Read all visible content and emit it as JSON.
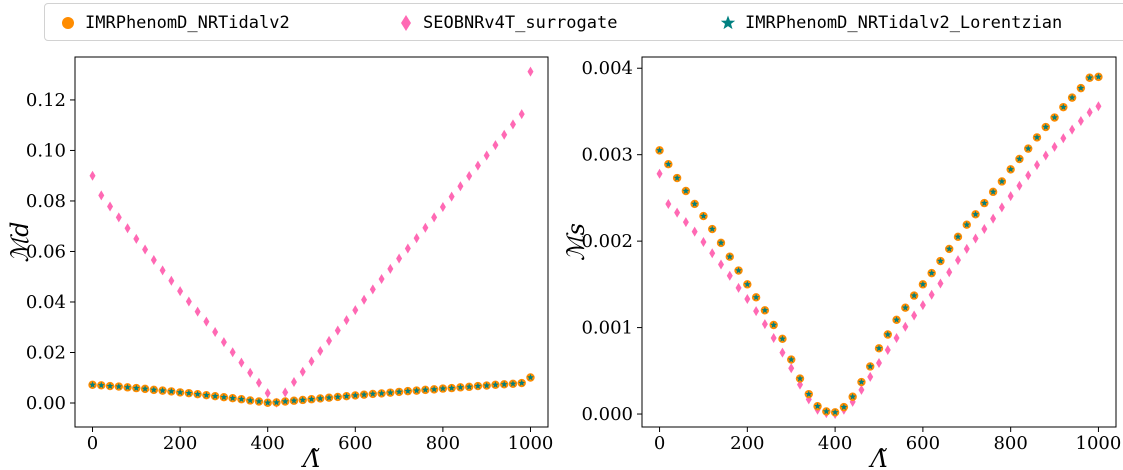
{
  "legend": {
    "items": [
      {
        "label": "IMRPhenomD_NRTidalv2",
        "color": "#ff8c00",
        "marker": "circle"
      },
      {
        "label": "SEOBNRv4T_surrogate",
        "color": "#ff69b4",
        "marker": "diamond"
      },
      {
        "label": "IMRPhenomD_NRTidalv2_Lorentzian",
        "color": "#008080",
        "marker": "star"
      }
    ]
  },
  "chart_data": [
    {
      "type": "scatter",
      "xlabel": "Λ̃",
      "ylabel": "ℳd",
      "xlim": [
        -40,
        1040
      ],
      "ylim": [
        -0.0095,
        0.137
      ],
      "xticks": [
        0,
        200,
        400,
        600,
        800,
        1000
      ],
      "xtick_labels": [
        "0",
        "200",
        "400",
        "600",
        "800",
        "1000"
      ],
      "yticks": [
        0.0,
        0.02,
        0.04,
        0.06,
        0.08,
        0.1,
        0.12
      ],
      "ytick_labels": [
        "0.00",
        "0.02",
        "0.04",
        "0.06",
        "0.08",
        "0.10",
        "0.12"
      ],
      "grid": false,
      "series": [
        {
          "name": "IMRPhenomD_NRTidalv2",
          "marker": "circle",
          "color": "#ff8c00",
          "x": [
            0,
            20,
            40,
            60,
            80,
            100,
            120,
            140,
            160,
            180,
            200,
            220,
            240,
            260,
            280,
            300,
            320,
            340,
            360,
            380,
            400,
            420,
            440,
            460,
            480,
            500,
            520,
            540,
            560,
            580,
            600,
            620,
            640,
            660,
            680,
            700,
            720,
            740,
            760,
            780,
            800,
            820,
            840,
            860,
            880,
            900,
            920,
            940,
            960,
            980,
            1000
          ],
          "y": [
            0.0072,
            0.007,
            0.0067,
            0.0065,
            0.0062,
            0.0059,
            0.0056,
            0.0052,
            0.0049,
            0.0046,
            0.0042,
            0.0039,
            0.0035,
            0.0031,
            0.0027,
            0.0023,
            0.0019,
            0.0015,
            0.001,
            0.0006,
            0.0001,
            0.0002,
            0.0006,
            0.0009,
            0.0012,
            0.0015,
            0.0018,
            0.0021,
            0.0024,
            0.0027,
            0.003,
            0.0033,
            0.0036,
            0.0038,
            0.0041,
            0.0044,
            0.0047,
            0.0049,
            0.0052,
            0.0054,
            0.0057,
            0.0059,
            0.0062,
            0.0064,
            0.0067,
            0.0069,
            0.0072,
            0.0074,
            0.0076,
            0.0079,
            0.0101
          ]
        },
        {
          "name": "SEOBNRv4T_surrogate",
          "marker": "diamond",
          "color": "#ff69b4",
          "x": [
            0,
            20,
            40,
            60,
            80,
            100,
            120,
            140,
            160,
            180,
            200,
            220,
            240,
            260,
            280,
            300,
            320,
            340,
            360,
            380,
            400,
            420,
            440,
            460,
            480,
            500,
            520,
            540,
            560,
            580,
            600,
            620,
            640,
            660,
            680,
            700,
            720,
            740,
            760,
            780,
            800,
            820,
            840,
            860,
            880,
            900,
            920,
            940,
            960,
            980,
            1000
          ],
          "y": [
            0.09,
            0.0822,
            0.0778,
            0.0735,
            0.0692,
            0.065,
            0.0608,
            0.0566,
            0.0525,
            0.0484,
            0.0443,
            0.0402,
            0.0362,
            0.0322,
            0.0281,
            0.0241,
            0.0201,
            0.016,
            0.012,
            0.008,
            0.0039,
            0.0001,
            0.0042,
            0.0083,
            0.0124,
            0.0165,
            0.0206,
            0.0246,
            0.0287,
            0.0328,
            0.0368,
            0.0409,
            0.045,
            0.0491,
            0.0531,
            0.0572,
            0.0612,
            0.0653,
            0.0694,
            0.0735,
            0.0776,
            0.0817,
            0.0858,
            0.0899,
            0.094,
            0.098,
            0.1021,
            0.1062,
            0.1103,
            0.1144,
            0.1312
          ]
        },
        {
          "name": "IMRPhenomD_NRTidalv2_Lorentzian",
          "marker": "star",
          "color": "#008080",
          "x": [
            0,
            20,
            40,
            60,
            80,
            100,
            120,
            140,
            160,
            180,
            200,
            220,
            240,
            260,
            280,
            300,
            320,
            340,
            360,
            380,
            400,
            420,
            440,
            460,
            480,
            500,
            520,
            540,
            560,
            580,
            600,
            620,
            640,
            660,
            680,
            700,
            720,
            740,
            760,
            780,
            800,
            820,
            840,
            860,
            880,
            900,
            920,
            940,
            960,
            980,
            1000
          ],
          "y": [
            0.0072,
            0.007,
            0.0067,
            0.0065,
            0.0062,
            0.0059,
            0.0056,
            0.0052,
            0.0049,
            0.0046,
            0.0042,
            0.0039,
            0.0035,
            0.0031,
            0.0027,
            0.0023,
            0.0019,
            0.0015,
            0.001,
            0.0006,
            0.0001,
            0.0002,
            0.0006,
            0.0009,
            0.0012,
            0.0015,
            0.0018,
            0.0021,
            0.0024,
            0.0027,
            0.003,
            0.0033,
            0.0036,
            0.0038,
            0.0041,
            0.0044,
            0.0047,
            0.0049,
            0.0052,
            0.0054,
            0.0057,
            0.0059,
            0.0062,
            0.0064,
            0.0067,
            0.0069,
            0.0072,
            0.0074,
            0.0076,
            0.0079,
            0.0101
          ]
        }
      ]
    },
    {
      "type": "scatter",
      "xlabel": "Λ̃",
      "ylabel": "ℳs",
      "xlim": [
        -40,
        1040
      ],
      "ylim": [
        -0.00015,
        0.00413
      ],
      "xticks": [
        0,
        200,
        400,
        600,
        800,
        1000
      ],
      "xtick_labels": [
        "0",
        "200",
        "400",
        "600",
        "800",
        "1000"
      ],
      "yticks": [
        0.0,
        0.001,
        0.002,
        0.003,
        0.004
      ],
      "ytick_labels": [
        "0.000",
        "0.001",
        "0.002",
        "0.003",
        "0.004"
      ],
      "grid": false,
      "series": [
        {
          "name": "IMRPhenomD_NRTidalv2",
          "marker": "circle",
          "color": "#ff8c00",
          "x": [
            0,
            20,
            40,
            60,
            80,
            100,
            120,
            140,
            160,
            180,
            200,
            220,
            240,
            260,
            280,
            300,
            320,
            340,
            360,
            380,
            400,
            420,
            440,
            460,
            480,
            500,
            520,
            540,
            560,
            580,
            600,
            620,
            640,
            660,
            680,
            700,
            720,
            740,
            760,
            780,
            800,
            820,
            840,
            860,
            880,
            900,
            920,
            940,
            960,
            980,
            1000
          ],
          "y": [
            0.00305,
            0.00289,
            0.00273,
            0.00258,
            0.00243,
            0.00229,
            0.00214,
            0.00198,
            0.00182,
            0.00166,
            0.0015,
            0.00135,
            0.0012,
            0.00103,
            0.00087,
            0.00063,
            0.00041,
            0.00023,
            9e-05,
            3e-05,
            2e-05,
            8e-05,
            0.0002,
            0.00037,
            0.00055,
            0.00076,
            0.00092,
            0.00109,
            0.00123,
            0.00137,
            0.0015,
            0.00163,
            0.00177,
            0.00191,
            0.00205,
            0.00219,
            0.00231,
            0.00244,
            0.00257,
            0.00269,
            0.00283,
            0.00295,
            0.00307,
            0.0032,
            0.00332,
            0.00343,
            0.00355,
            0.00366,
            0.00377,
            0.00389,
            0.0039
          ]
        },
        {
          "name": "SEOBNRv4T_surrogate",
          "marker": "diamond",
          "color": "#ff69b4",
          "x": [
            0,
            20,
            40,
            60,
            80,
            100,
            120,
            140,
            160,
            180,
            200,
            220,
            240,
            260,
            280,
            300,
            320,
            340,
            360,
            380,
            400,
            420,
            440,
            460,
            480,
            500,
            520,
            540,
            560,
            580,
            600,
            620,
            640,
            660,
            680,
            700,
            720,
            740,
            760,
            780,
            800,
            820,
            840,
            860,
            880,
            900,
            920,
            940,
            960,
            980,
            1000
          ],
          "y": [
            0.00278,
            0.00243,
            0.00233,
            0.00222,
            0.00211,
            0.00199,
            0.00186,
            0.00173,
            0.0016,
            0.00146,
            0.00133,
            0.00119,
            0.00104,
            0.00088,
            0.00071,
            0.00053,
            0.00034,
            0.00017,
            5e-05,
            1e-05,
            0.0,
            5e-05,
            0.00014,
            0.00028,
            0.00043,
            0.00059,
            0.00074,
            0.00088,
            0.00101,
            0.00114,
            0.00126,
            0.00138,
            0.00151,
            0.00164,
            0.00178,
            0.00191,
            0.00203,
            0.00214,
            0.00226,
            0.00239,
            0.00252,
            0.00264,
            0.00276,
            0.00288,
            0.00299,
            0.00309,
            0.00319,
            0.00329,
            0.00339,
            0.00349,
            0.00356
          ]
        },
        {
          "name": "IMRPhenomD_NRTidalv2_Lorentzian",
          "marker": "star",
          "color": "#008080",
          "x": [
            0,
            20,
            40,
            60,
            80,
            100,
            120,
            140,
            160,
            180,
            200,
            220,
            240,
            260,
            280,
            300,
            320,
            340,
            360,
            380,
            400,
            420,
            440,
            460,
            480,
            500,
            520,
            540,
            560,
            580,
            600,
            620,
            640,
            660,
            680,
            700,
            720,
            740,
            760,
            780,
            800,
            820,
            840,
            860,
            880,
            900,
            920,
            940,
            960,
            980,
            1000
          ],
          "y": [
            0.00305,
            0.00289,
            0.00273,
            0.00258,
            0.00243,
            0.00229,
            0.00214,
            0.00198,
            0.00182,
            0.00166,
            0.0015,
            0.00135,
            0.0012,
            0.00103,
            0.00087,
            0.00063,
            0.00041,
            0.00023,
            9e-05,
            3e-05,
            2e-05,
            8e-05,
            0.0002,
            0.00037,
            0.00055,
            0.00076,
            0.00092,
            0.00109,
            0.00123,
            0.00137,
            0.0015,
            0.00163,
            0.00177,
            0.00191,
            0.00205,
            0.00219,
            0.00231,
            0.00244,
            0.00257,
            0.00269,
            0.00283,
            0.00295,
            0.00307,
            0.0032,
            0.00332,
            0.00343,
            0.00355,
            0.00366,
            0.00377,
            0.00389,
            0.0039
          ]
        }
      ]
    }
  ]
}
